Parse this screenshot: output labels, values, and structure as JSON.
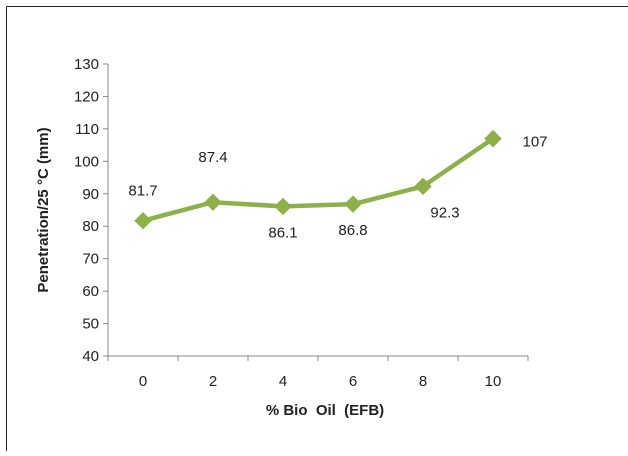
{
  "chart_data": {
    "type": "line",
    "title": "",
    "xlabel": "% Bio  Oil  (EFB)",
    "ylabel": "Penetration/25 °C (mm)",
    "categories": [
      "0",
      "2",
      "4",
      "6",
      "8",
      "10"
    ],
    "series": [
      {
        "values": [
          81.7,
          87.4,
          86.1,
          86.8,
          92.3,
          107
        ],
        "data_labels": [
          "81.7",
          "87.4",
          "86.1",
          "86.8",
          "92.3",
          "107"
        ],
        "color": "#8db04a",
        "marker": "diamond"
      }
    ],
    "ylim": [
      40,
      130
    ],
    "y_ticks": [
      "40",
      "50",
      "60",
      "70",
      "80",
      "90",
      "100",
      "110",
      "120",
      "130"
    ],
    "grid": false,
    "legend": "none"
  }
}
